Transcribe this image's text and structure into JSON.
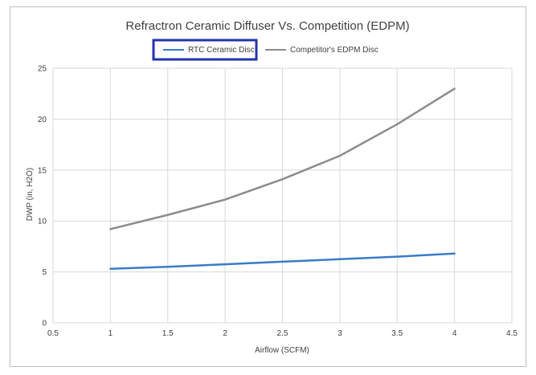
{
  "chart_data": {
    "type": "line",
    "title": "Refractron Ceramic Diffuser Vs. Competition (EDPM)",
    "xlabel": "Airflow (SCFM)",
    "ylabel": "DWP (in, H2O)",
    "xlim": [
      0.5,
      4.5
    ],
    "ylim": [
      0,
      25
    ],
    "x_ticks": [
      "0.5",
      "1",
      "1.5",
      "2",
      "2.5",
      "3",
      "3.5",
      "4",
      "4.5"
    ],
    "y_ticks": [
      "0",
      "5",
      "10",
      "15",
      "20",
      "25"
    ],
    "grid": true,
    "legend_position": "top",
    "highlighted_legend": "RTC Ceramic Disc",
    "series": [
      {
        "name": "RTC Ceramic Disc",
        "color": "#3a7bc8",
        "x": [
          1,
          1.5,
          2,
          2.5,
          3,
          3.5,
          4
        ],
        "y": [
          5.3,
          5.5,
          5.75,
          6.0,
          6.25,
          6.5,
          6.8
        ]
      },
      {
        "name": "Competitor's EDPM Disc",
        "color": "#8c8c8c",
        "x": [
          1,
          1.5,
          2,
          2.5,
          3,
          3.5,
          4
        ],
        "y": [
          9.2,
          10.6,
          12.1,
          14.1,
          16.4,
          19.5,
          23.0
        ]
      }
    ]
  }
}
